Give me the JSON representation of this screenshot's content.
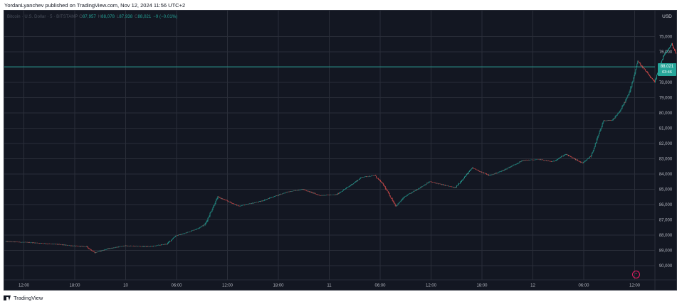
{
  "header": {
    "published_line": "YordanLyanchev published on TradingView.com, Nov 12, 2024 11:56 UTC+2"
  },
  "legend": {
    "symbol": "Bitcoin · U.S. Dollar · 5 · BITSTAMP",
    "open_label": "O",
    "open": "87,957",
    "high_label": "H",
    "high": "88,078",
    "low_label": "L",
    "low": "87,938",
    "close_label": "C",
    "close": "88,021",
    "change": "−9 (−0.01%)"
  },
  "price_scale": {
    "unit": "USD",
    "tick_labels": [
      "90,000",
      "89,000",
      "88,000",
      "87,000",
      "86,000",
      "85,000",
      "84,000",
      "83,000",
      "82,000",
      "81,000",
      "80,000",
      "79,000",
      "78,000",
      "77,000",
      "76,000",
      "75,000"
    ]
  },
  "last_price_badge": {
    "price": "88,021",
    "countdown": "03:46"
  },
  "time_axis": {
    "tick_labels": [
      "12:00",
      "18:00",
      "10",
      "06:00",
      "12:00",
      "18:00",
      "11",
      "06:00",
      "12:00",
      "18:00",
      "12",
      "06:00",
      "12:00"
    ]
  },
  "footer": {
    "brand": "TradingView"
  },
  "colors": {
    "background": "#131722",
    "grid": "#2a2e39",
    "up": "#26a69a",
    "down": "#ef5350",
    "axis_text": "#b2b5be"
  },
  "chart_data": {
    "type": "candlestick",
    "symbol": "BTCUSD",
    "exchange": "BITSTAMP",
    "interval": "5",
    "currency": "USD",
    "ylim": [
      74600,
      90900
    ],
    "grid": true,
    "x_tick_labels": [
      "12:00",
      "18:00",
      "10",
      "06:00",
      "12:00",
      "18:00",
      "11",
      "06:00",
      "12:00",
      "18:00",
      "12",
      "06:00",
      "12:00"
    ],
    "y_tick_values": [
      75000,
      76000,
      77000,
      78000,
      79000,
      80000,
      81000,
      82000,
      83000,
      84000,
      85000,
      86000,
      87000,
      88000,
      89000,
      90000
    ],
    "last_price": 88021,
    "price_path": {
      "description_units": "time in hours since first candle, price in USD",
      "t": [
        0,
        3,
        6,
        8,
        9.5,
        10.5,
        12,
        14,
        17,
        19,
        20,
        21,
        22.5,
        23.5,
        25,
        27.5,
        30,
        33,
        35,
        37,
        39,
        40.5,
        42,
        43.5,
        44.5,
        46,
        47,
        50,
        53,
        55,
        57,
        58.5,
        61,
        63,
        64.5,
        66,
        67,
        68,
        69,
        70.5,
        71.5,
        72.5,
        73.5,
        74,
        74.5,
        75.5,
        76.5,
        77.5,
        78.5,
        79.5,
        80.5,
        81.5,
        82.5,
        83.5,
        84.5,
        85.5,
        86.5,
        87,
        87.5,
        88.5,
        89,
        89.5
      ],
      "v": [
        76580,
        76510,
        76400,
        76290,
        76250,
        75850,
        76100,
        76300,
        76250,
        76420,
        76950,
        77100,
        77400,
        77700,
        79500,
        78900,
        79200,
        79800,
        80000,
        79600,
        79650,
        80200,
        80800,
        80900,
        80300,
        78900,
        79500,
        80500,
        80100,
        81400,
        80900,
        81200,
        81900,
        81950,
        81800,
        82300,
        82000,
        81700,
        82200,
        84500,
        84500,
        85200,
        86300,
        87300,
        88400,
        87700,
        87000,
        88700,
        89500,
        88300,
        87800,
        89400,
        88600,
        87500,
        88800,
        88900,
        88700,
        89700,
        89000,
        88900,
        88500,
        88021
      ]
    }
  }
}
